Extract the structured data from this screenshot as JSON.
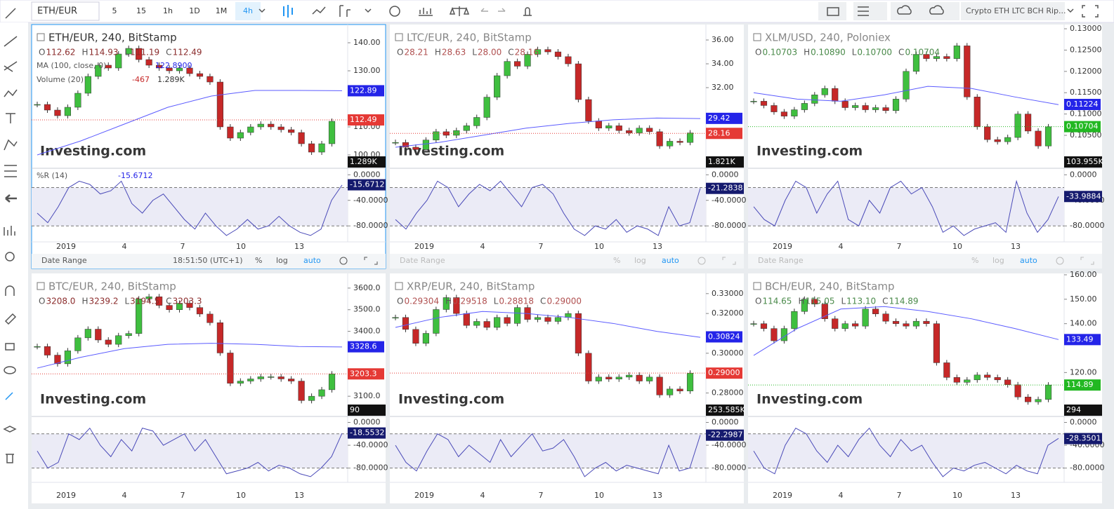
{
  "toolbar": {
    "symbol": "ETH/EUR",
    "intervals": [
      "5",
      "15",
      "1h",
      "1D",
      "1M",
      "4h"
    ],
    "active_index": 5,
    "layout_name": "Crypto ETH LTC BCH Rip..."
  },
  "watermark": "Investing.com",
  "x_labels": [
    "2019",
    "4",
    "7",
    "10",
    "13"
  ],
  "date_bar": {
    "label": "Date Range",
    "time": "18:51:50 (UTC+1)",
    "buttons": [
      "%",
      "log",
      "auto"
    ]
  },
  "wr_ylim": [
    -105,
    8
  ],
  "wr_band": [
    -20,
    -80
  ],
  "wr_ticks": [
    {
      "value": 0,
      "label": "0.0000"
    },
    {
      "value": -40,
      "label": "-40.0000"
    },
    {
      "value": -80,
      "label": "-80.0000"
    }
  ],
  "panels": [
    {
      "title": "ETH/EUR, 240, BitStamp",
      "ohlc_color": "#8b2c2c",
      "ohlc": [
        {
          "k": "O",
          "v": "112.62"
        },
        {
          "k": "H",
          "v": "114.93"
        },
        {
          "k": "L",
          "v": "111.19"
        },
        {
          "k": "C",
          "v": "112.49"
        }
      ],
      "ma_legend": {
        "name": "MA (100, close, 0)",
        "value": "122.8900"
      },
      "vol_legend": {
        "name": "Volume (20)",
        "values": [
          "-467",
          "1.289K"
        ]
      },
      "wr_legend": "%R (14)",
      "ylim": [
        95.75,
        145.75
      ],
      "yticks": [
        {
          "value": 140,
          "label": "140.00"
        },
        {
          "value": 130,
          "label": "130.00"
        },
        {
          "value": 110,
          "label": "110.00"
        },
        {
          "value": 100,
          "label": "100.00"
        }
      ],
      "last": {
        "value": 112.49,
        "label": "112.49",
        "color": "#e53935"
      },
      "ma_last": {
        "value": 122.89,
        "label": "122.89"
      },
      "vol_label": "1.289K",
      "wr_last": {
        "value": -15.6712,
        "label": "-15.6712"
      },
      "closes": [
        118,
        116,
        114,
        117,
        122,
        128,
        132,
        131,
        136,
        138,
        134,
        132,
        131,
        130,
        131,
        129,
        128,
        126,
        110,
        106,
        108,
        110,
        111,
        110,
        109,
        108,
        104,
        101,
        104,
        112
      ],
      "ma": [
        100,
        105,
        111,
        117,
        121,
        123,
        123,
        122.9
      ],
      "wr": [
        -60,
        -75,
        -50,
        -20,
        -10,
        -15,
        -30,
        -25,
        -10,
        -45,
        -60,
        -40,
        -30,
        -50,
        -70,
        -85,
        -60,
        -80,
        -95,
        -85,
        -70,
        -85,
        -80,
        -65,
        -80,
        -90,
        -95,
        -85,
        -40,
        -16
      ]
    },
    {
      "title": "LTC/EUR, 240, BitStamp",
      "ohlc_color": "#b05050",
      "ohlc": [
        {
          "k": "O",
          "v": "28.21"
        },
        {
          "k": "H",
          "v": "28.63"
        },
        {
          "k": "L",
          "v": "28.00"
        },
        {
          "k": "C",
          "v": "28.16"
        }
      ],
      "ylim": [
        25.35,
        37.12
      ],
      "yticks": [
        {
          "value": 36,
          "label": "36.00"
        },
        {
          "value": 34,
          "label": "34.00"
        },
        {
          "value": 32,
          "label": "32.00"
        }
      ],
      "last": {
        "value": 28.16,
        "label": "28.16",
        "color": "#e53935"
      },
      "ma_last": {
        "value": 29.42,
        "label": "29.42"
      },
      "vol_label": "1.821K",
      "wr_last": {
        "value": -21.2838,
        "label": "-21.2838"
      },
      "closes": [
        27.4,
        27.0,
        26.8,
        27.6,
        28.3,
        28.0,
        28.4,
        28.8,
        29.5,
        31.2,
        33.0,
        34.2,
        33.8,
        34.8,
        35.2,
        35.0,
        34.6,
        34.0,
        31.0,
        29.2,
        28.6,
        28.8,
        28.4,
        28.2,
        28.6,
        28.3,
        27.1,
        27.5,
        27.4,
        28.2
      ],
      "ma": [
        27.0,
        27.4,
        28.0,
        28.6,
        29.0,
        29.3,
        29.45,
        29.4
      ],
      "wr": [
        -70,
        -85,
        -60,
        -40,
        -10,
        -20,
        -50,
        -30,
        -15,
        -25,
        -10,
        -30,
        -50,
        -20,
        -15,
        -30,
        -60,
        -85,
        -95,
        -80,
        -85,
        -70,
        -90,
        -80,
        -85,
        -95,
        -50,
        -80,
        -75,
        -21
      ]
    },
    {
      "title": "XLM/USD, 240, Poloniex",
      "ohlc_color": "#4a8a4a",
      "ohlc": [
        {
          "k": "O",
          "v": "0.10703"
        },
        {
          "k": "H",
          "v": "0.10890"
        },
        {
          "k": "L",
          "v": "0.10700"
        },
        {
          "k": "C",
          "v": "0.10704"
        }
      ],
      "ylim": [
        0.0976,
        0.1305
      ],
      "yticks": [
        {
          "value": 0.13,
          "label": "0.13000"
        },
        {
          "value": 0.125,
          "label": "0.12500"
        },
        {
          "value": 0.12,
          "label": "0.12000"
        },
        {
          "value": 0.115,
          "label": "0.11500"
        },
        {
          "value": 0.11,
          "label": "0.11000"
        },
        {
          "value": 0.105,
          "label": "0.10500"
        }
      ],
      "last": {
        "value": 0.10704,
        "label": "0.10704",
        "color": "#22b822"
      },
      "ma_last": {
        "value": 0.11224,
        "label": "0.11224"
      },
      "vol_label": "103.955K",
      "wr_last": {
        "value": -33.9884,
        "label": "-33.9884"
      },
      "closes": [
        0.113,
        0.112,
        0.1105,
        0.1095,
        0.111,
        0.1125,
        0.1145,
        0.116,
        0.113,
        0.1115,
        0.112,
        0.111,
        0.1115,
        0.1108,
        0.1135,
        0.12,
        0.124,
        0.123,
        0.1235,
        0.123,
        0.126,
        0.114,
        0.107,
        0.104,
        0.1035,
        0.1045,
        0.11,
        0.106,
        0.1025,
        0.107
      ],
      "ma": [
        0.115,
        0.1135,
        0.113,
        0.1145,
        0.1165,
        0.116,
        0.114,
        0.1122
      ],
      "wr": [
        -50,
        -70,
        -80,
        -40,
        -10,
        -20,
        -60,
        -30,
        -10,
        -70,
        -80,
        -40,
        -60,
        -20,
        -10,
        -30,
        -20,
        -50,
        -90,
        -80,
        -95,
        -85,
        -80,
        -75,
        -90,
        -10,
        -60,
        -90,
        -70,
        -34
      ]
    },
    {
      "title": "BTC/EUR, 240, BitStamp",
      "ohlc_color": "#8b2c2c",
      "ohlc": [
        {
          "k": "O",
          "v": "3208.0"
        },
        {
          "k": "H",
          "v": "3239.2"
        },
        {
          "k": "L",
          "v": "3194.5"
        },
        {
          "k": "C",
          "v": "3203.3"
        }
      ],
      "ylim": [
        3013,
        3658
      ],
      "yticks": [
        {
          "value": 3600,
          "label": "3600.0"
        },
        {
          "value": 3500,
          "label": "3500.0"
        },
        {
          "value": 3400,
          "label": "3400.0"
        },
        {
          "value": 3100,
          "label": "3100.0"
        }
      ],
      "last": {
        "value": 3203.3,
        "label": "3203.3",
        "color": "#e53935"
      },
      "ma_last": {
        "value": 3328.6,
        "label": "3328.6"
      },
      "vol_label": "90",
      "wr_last": {
        "value": -18.5532,
        "label": "-18.5532"
      },
      "closes": [
        3330,
        3290,
        3250,
        3310,
        3370,
        3410,
        3360,
        3340,
        3380,
        3390,
        3550,
        3560,
        3520,
        3500,
        3530,
        3510,
        3480,
        3440,
        3300,
        3160,
        3170,
        3180,
        3190,
        3190,
        3180,
        3170,
        3080,
        3100,
        3130,
        3203
      ],
      "ma": [
        3230,
        3280,
        3320,
        3340,
        3345,
        3340,
        3330,
        3328
      ],
      "wr": [
        -50,
        -80,
        -70,
        -20,
        -30,
        -10,
        -40,
        -60,
        -30,
        -50,
        -10,
        -15,
        -40,
        -30,
        -20,
        -50,
        -30,
        -60,
        -90,
        -85,
        -80,
        -70,
        -85,
        -75,
        -80,
        -90,
        -95,
        -80,
        -60,
        -19
      ]
    },
    {
      "title": "XRP/EUR, 240, BitStamp",
      "ohlc_color": "#b05050",
      "ohlc": [
        {
          "k": "O",
          "v": "0.29304"
        },
        {
          "k": "H",
          "v": "0.29518"
        },
        {
          "k": "L",
          "v": "0.28818"
        },
        {
          "k": "C",
          "v": "0.29000"
        }
      ],
      "ylim": [
        0.2689,
        0.3391
      ],
      "yticks": [
        {
          "value": 0.33,
          "label": "0.33000"
        },
        {
          "value": 0.32,
          "label": "0.32000"
        },
        {
          "value": 0.3,
          "label": "0.30000"
        },
        {
          "value": 0.28,
          "label": "0.28000"
        }
      ],
      "last": {
        "value": 0.29,
        "label": "0.29000",
        "color": "#e53935"
      },
      "ma_last": {
        "value": 0.30824,
        "label": "0.30824"
      },
      "vol_label": "253.585K",
      "wr_last": {
        "value": -22.2987,
        "label": "-22.2987"
      },
      "closes": [
        0.318,
        0.312,
        0.305,
        0.31,
        0.322,
        0.328,
        0.32,
        0.314,
        0.316,
        0.313,
        0.318,
        0.315,
        0.323,
        0.317,
        0.318,
        0.316,
        0.318,
        0.32,
        0.3,
        0.286,
        0.288,
        0.287,
        0.288,
        0.289,
        0.286,
        0.288,
        0.279,
        0.282,
        0.281,
        0.29
      ],
      "ma": [
        0.313,
        0.318,
        0.321,
        0.32,
        0.318,
        0.315,
        0.311,
        0.308
      ],
      "wr": [
        -40,
        -70,
        -85,
        -50,
        -20,
        -30,
        -60,
        -40,
        -55,
        -70,
        -30,
        -60,
        -40,
        -20,
        -50,
        -45,
        -30,
        -60,
        -95,
        -80,
        -70,
        -85,
        -75,
        -80,
        -85,
        -90,
        -40,
        -85,
        -80,
        -22
      ]
    },
    {
      "title": "BCH/EUR, 240, BitStamp",
      "ohlc_color": "#4a8a4a",
      "ohlc": [
        {
          "k": "O",
          "v": "114.65"
        },
        {
          "k": "H",
          "v": "115.05"
        },
        {
          "k": "L",
          "v": "113.10"
        },
        {
          "k": "C",
          "v": "114.89"
        }
      ],
      "ylim": [
        102.6,
        159.7
      ],
      "yticks": [
        {
          "value": 160,
          "label": "160.00"
        },
        {
          "value": 150,
          "label": "150.00"
        },
        {
          "value": 140,
          "label": "140.00"
        },
        {
          "value": 120,
          "label": "120.00"
        }
      ],
      "last": {
        "value": 114.89,
        "label": "114.89",
        "color": "#22b822"
      },
      "ma_last": {
        "value": 133.49,
        "label": "133.49"
      },
      "vol_label": "294",
      "wr_last": {
        "value": -28.3501,
        "label": "-28.3501"
      },
      "closes": [
        140,
        138,
        133,
        138,
        145,
        150,
        148,
        142,
        138,
        140,
        139,
        146,
        144,
        141,
        140,
        139,
        141,
        140,
        124,
        118,
        116,
        117,
        119,
        118,
        117,
        115,
        110,
        108,
        109,
        114.9
      ],
      "ma": [
        127,
        138,
        146,
        147,
        145,
        142,
        138,
        133.5
      ],
      "wr": [
        -50,
        -80,
        -90,
        -40,
        -10,
        -20,
        -50,
        -70,
        -40,
        -60,
        -30,
        -10,
        -40,
        -60,
        -30,
        -50,
        -40,
        -70,
        -95,
        -80,
        -85,
        -75,
        -70,
        -80,
        -90,
        -75,
        -85,
        -90,
        -40,
        -28
      ]
    }
  ]
}
